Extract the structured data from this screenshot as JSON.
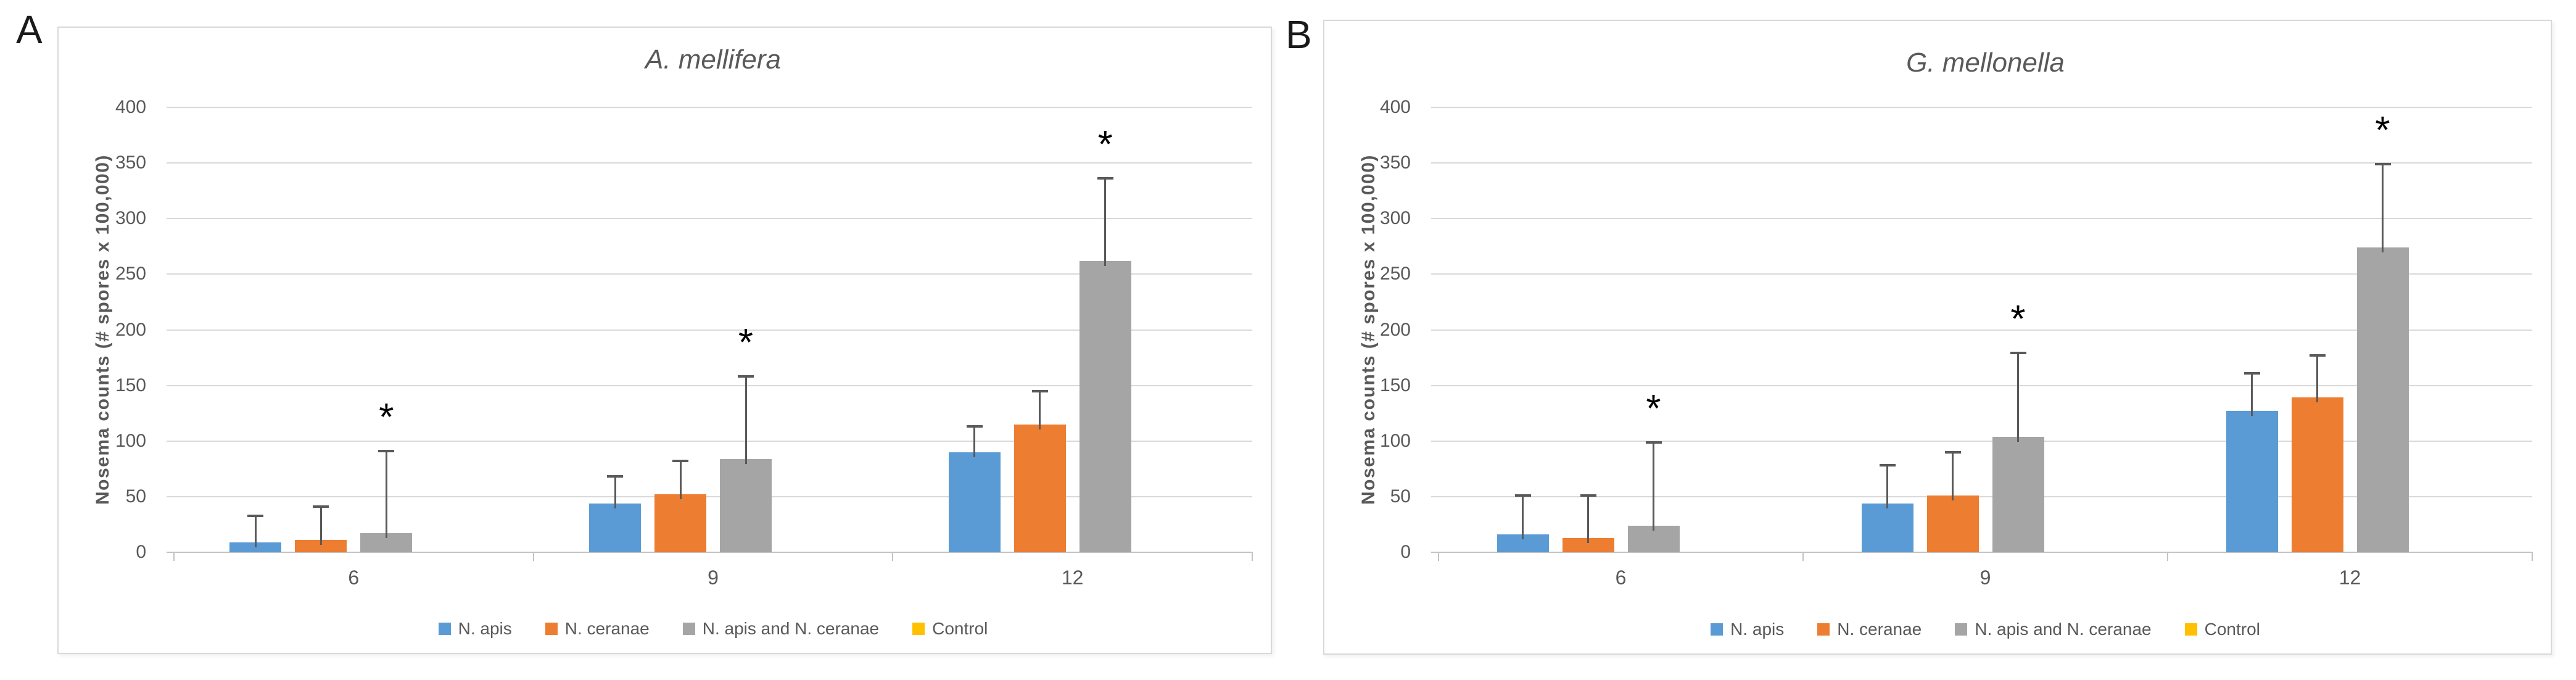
{
  "figure": {
    "background": "#ffffff",
    "panel_border_color": "#d9d9d9",
    "text_color": "#595959",
    "gridline_color": "#d9d9d9",
    "error_bar_color": "#595959",
    "significance_marker": "*"
  },
  "chart_data": [
    {
      "type": "bar",
      "panel_label": "A",
      "title": "A. mellifera",
      "xlabel": "",
      "ylabel": "Nosema counts (# spores x 100,000)",
      "ylim": [
        0,
        400
      ],
      "yticks": [
        0,
        50,
        100,
        150,
        200,
        250,
        300,
        350,
        400
      ],
      "grid": true,
      "legend_position": "bottom",
      "categories": [
        "6",
        "9",
        "12"
      ],
      "series": [
        {
          "name": "N. apis",
          "color": "#5B9BD5",
          "values": [
            9,
            44,
            90
          ],
          "error_top": [
            33,
            68,
            113
          ]
        },
        {
          "name": "N. ceranae",
          "color": "#ED7D31",
          "values": [
            11,
            52,
            115
          ],
          "error_top": [
            41,
            82,
            145
          ]
        },
        {
          "name": "N. apis and N. ceranae",
          "color": "#A5A5A5",
          "values": [
            17,
            84,
            262
          ],
          "error_top": [
            91,
            158,
            336
          ],
          "asterisk": [
            true,
            true,
            true
          ]
        },
        {
          "name": "Control",
          "color": "#FFC000",
          "values": [
            0,
            0,
            0
          ],
          "error_top": [
            null,
            null,
            null
          ]
        }
      ]
    },
    {
      "type": "bar",
      "panel_label": "B",
      "title": "G. mellonella",
      "xlabel": "",
      "ylabel": "Nosema counts (# spores x 100,000)",
      "ylim": [
        0,
        400
      ],
      "yticks": [
        0,
        50,
        100,
        150,
        200,
        250,
        300,
        350,
        400
      ],
      "grid": true,
      "legend_position": "bottom",
      "categories": [
        "6",
        "9",
        "12"
      ],
      "series": [
        {
          "name": "N. apis",
          "color": "#5B9BD5",
          "values": [
            16,
            44,
            127
          ],
          "error_top": [
            51,
            78,
            161
          ]
        },
        {
          "name": "N. ceranae",
          "color": "#ED7D31",
          "values": [
            13,
            51,
            139
          ],
          "error_top": [
            51,
            90,
            177
          ]
        },
        {
          "name": "N. apis and N. ceranae",
          "color": "#A5A5A5",
          "values": [
            24,
            104,
            274
          ],
          "error_top": [
            99,
            179,
            349
          ],
          "asterisk": [
            true,
            true,
            true
          ]
        },
        {
          "name": "Control",
          "color": "#FFC000",
          "values": [
            0,
            0,
            0
          ],
          "error_top": [
            null,
            null,
            null
          ]
        }
      ]
    }
  ]
}
